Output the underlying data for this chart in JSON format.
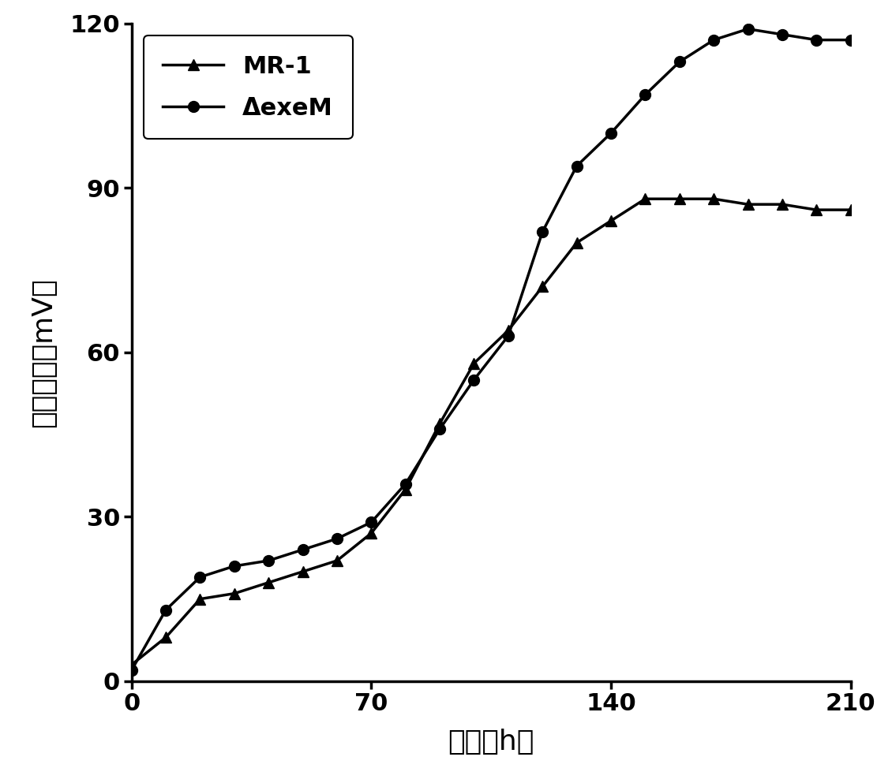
{
  "mr1_x": [
    0,
    10,
    20,
    30,
    40,
    50,
    60,
    70,
    80,
    90,
    100,
    110,
    120,
    130,
    140,
    150,
    160,
    170,
    180,
    190,
    200,
    210
  ],
  "mr1_y": [
    3,
    8,
    15,
    16,
    18,
    20,
    22,
    27,
    35,
    47,
    58,
    64,
    72,
    80,
    84,
    88,
    88,
    88,
    87,
    87,
    86,
    86
  ],
  "exem_x": [
    0,
    10,
    20,
    30,
    40,
    50,
    60,
    70,
    80,
    90,
    100,
    110,
    120,
    130,
    140,
    150,
    160,
    170,
    180,
    190,
    200,
    210
  ],
  "exem_y": [
    2,
    13,
    19,
    21,
    22,
    24,
    26,
    29,
    36,
    46,
    55,
    63,
    82,
    94,
    100,
    107,
    113,
    117,
    119,
    118,
    117,
    117
  ],
  "xlabel": "时间（h）",
  "ylabel": "输出电压（mV）",
  "xlim": [
    0,
    210
  ],
  "ylim": [
    0,
    120
  ],
  "xticks": [
    0,
    70,
    140,
    210
  ],
  "yticks": [
    0,
    30,
    60,
    90,
    120
  ],
  "legend_mr1": "MR-1",
  "legend_exem": "ΔexeM",
  "color": "#000000",
  "linewidth": 2.5,
  "markersize": 10,
  "label_fontsize": 26,
  "tick_fontsize": 22,
  "legend_fontsize": 22
}
